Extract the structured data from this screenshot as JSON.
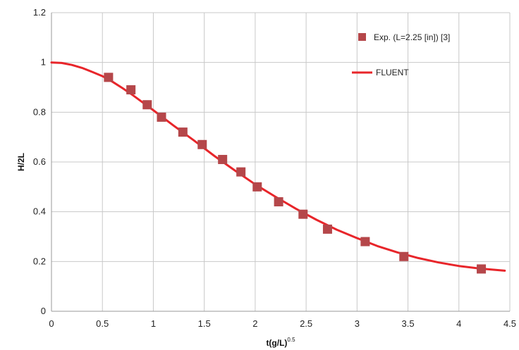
{
  "chart_data": {
    "type": "scatter",
    "title": "",
    "xlabel": "t(g/L)",
    "xlabel_exponent": "0.5",
    "ylabel": "H/2L",
    "xlim": [
      0,
      4.5
    ],
    "ylim": [
      0,
      1.2
    ],
    "x_ticks": [
      "0",
      "0.5",
      "1",
      "1.5",
      "2",
      "2.5",
      "3",
      "3.5",
      "4",
      "4.5"
    ],
    "y_ticks": [
      "0",
      "0.2",
      "0.4",
      "0.6",
      "0.8",
      "1",
      "1.2"
    ],
    "grid": true,
    "legend_position": "top-right",
    "series": [
      {
        "name": "Exp. (L=2.25 [in]) [3]",
        "kind": "markers",
        "color": "#b5474a",
        "marker": "square",
        "x": [
          0.56,
          0.78,
          0.94,
          1.08,
          1.29,
          1.48,
          1.68,
          1.86,
          2.02,
          2.23,
          2.47,
          2.71,
          3.08,
          3.46,
          4.22
        ],
        "y": [
          0.94,
          0.89,
          0.83,
          0.78,
          0.72,
          0.67,
          0.61,
          0.56,
          0.5,
          0.44,
          0.39,
          0.33,
          0.28,
          0.22,
          0.17
        ]
      },
      {
        "name": "FLUENT",
        "kind": "line",
        "color": "#e8252a",
        "x": [
          0,
          0.1,
          0.2,
          0.3,
          0.4,
          0.5,
          0.6,
          0.7,
          0.8,
          0.9,
          1.0,
          1.2,
          1.4,
          1.6,
          1.8,
          2.0,
          2.2,
          2.4,
          2.6,
          2.8,
          3.0,
          3.2,
          3.4,
          3.6,
          3.8,
          4.0,
          4.2,
          4.45
        ],
        "y": [
          1.0,
          0.998,
          0.99,
          0.978,
          0.962,
          0.945,
          0.922,
          0.896,
          0.868,
          0.838,
          0.808,
          0.746,
          0.686,
          0.624,
          0.566,
          0.51,
          0.46,
          0.412,
          0.368,
          0.328,
          0.294,
          0.262,
          0.236,
          0.214,
          0.196,
          0.182,
          0.172,
          0.163
        ]
      }
    ]
  }
}
